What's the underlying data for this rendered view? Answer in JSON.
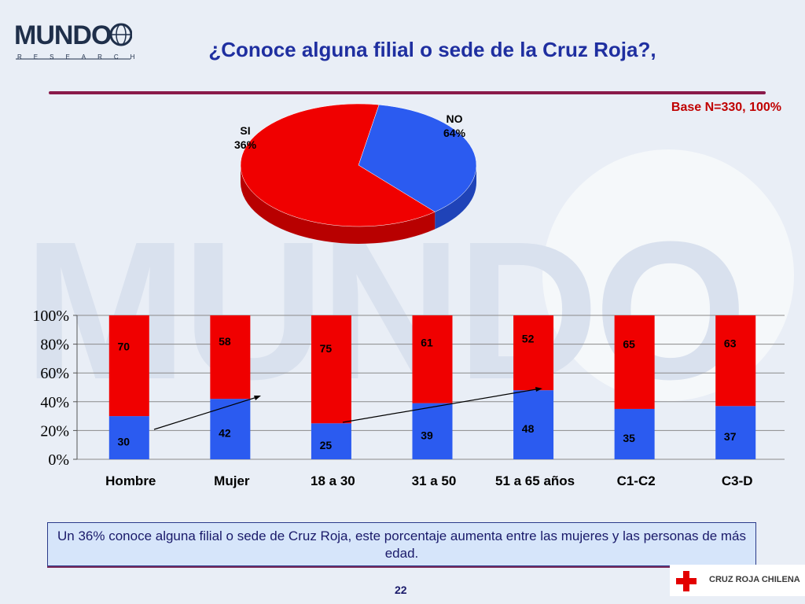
{
  "logo": {
    "name": "MUNDO",
    "sub": "RESEARCH"
  },
  "title": "¿Conoce alguna filial o sede de la Cruz Roja?,",
  "base_note": "Base N=330, 100%",
  "summary": "Un 36% conoce alguna filial o sede de Cruz Roja, este porcentaje aumenta entre las mujeres y las personas de más edad.",
  "page_number": "22",
  "footer_logo": "CRUZ ROJA CHILENA",
  "colors": {
    "si": "#2b5bf0",
    "no": "#f00000",
    "accent_line": "#8a1a4a",
    "title": "#1f2fa0"
  },
  "chart_data": [
    {
      "type": "pie",
      "labels": [
        "SI",
        "NO"
      ],
      "values": [
        36,
        64
      ],
      "value_labels": [
        "36%",
        "64%"
      ]
    },
    {
      "type": "bar",
      "stacked": true,
      "categories": [
        "Hombre",
        "Mujer",
        "18 a 30",
        "31 a 50",
        "51 a 65 años",
        "C1-C2",
        "C3-D"
      ],
      "series": [
        {
          "values": [
            30,
            42,
            25,
            39,
            48,
            35,
            37
          ]
        },
        {
          "values": [
            70,
            58,
            75,
            61,
            52,
            65,
            63
          ]
        }
      ],
      "yticks": [
        "0%",
        "20%",
        "40%",
        "60%",
        "80%",
        "100%"
      ],
      "ylim": [
        0,
        100
      ],
      "grid": true
    }
  ]
}
